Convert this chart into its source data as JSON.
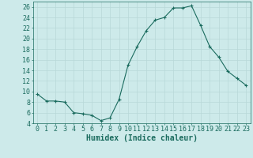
{
  "x": [
    0,
    1,
    2,
    3,
    4,
    5,
    6,
    7,
    8,
    9,
    10,
    11,
    12,
    13,
    14,
    15,
    16,
    17,
    18,
    19,
    20,
    21,
    22,
    23
  ],
  "y": [
    9.5,
    8.2,
    8.2,
    8.0,
    6.0,
    5.8,
    5.5,
    4.5,
    5.0,
    8.5,
    15.0,
    18.5,
    21.5,
    23.5,
    24.0,
    25.8,
    25.8,
    26.2,
    22.5,
    18.5,
    16.5,
    13.8,
    12.5,
    11.2
  ],
  "line_color": "#1a6b5e",
  "marker": "+",
  "marker_size": 3,
  "bg_color": "#cdeaea",
  "grid_color": "#b8d8d8",
  "xlabel": "Humidex (Indice chaleur)",
  "xlim": [
    -0.5,
    23.5
  ],
  "ylim": [
    4,
    27
  ],
  "yticks": [
    4,
    6,
    8,
    10,
    12,
    14,
    16,
    18,
    20,
    22,
    24,
    26
  ],
  "xticks": [
    0,
    1,
    2,
    3,
    4,
    5,
    6,
    7,
    8,
    9,
    10,
    11,
    12,
    13,
    14,
    15,
    16,
    17,
    18,
    19,
    20,
    21,
    22,
    23
  ],
  "tick_color": "#1a6b5e",
  "font_size": 6,
  "label_font_size": 7
}
